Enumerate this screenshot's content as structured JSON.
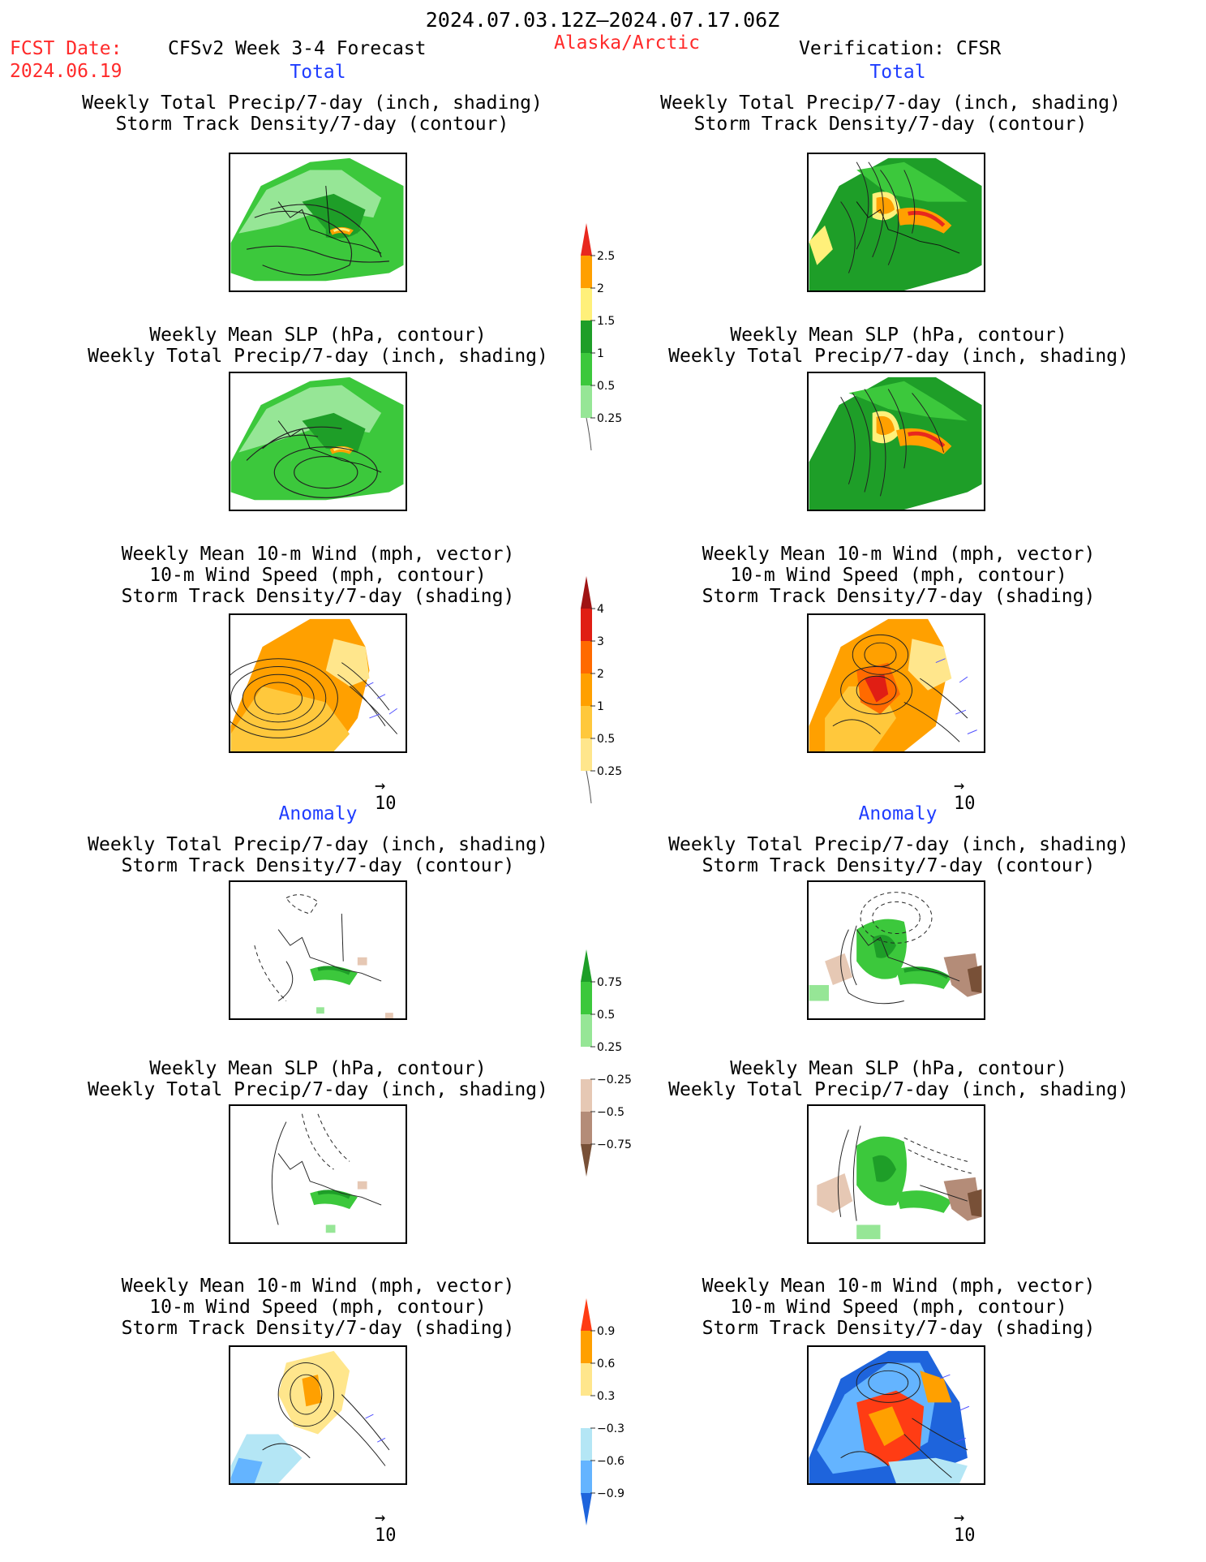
{
  "header": {
    "date_range": "2024.07.03.12Z–2024.07.17.06Z",
    "fcst_label": "FCST Date:",
    "fcst_date": "2024.06.19",
    "forecast_title": "CFSv2 Week 3-4 Forecast",
    "region": "Alaska/Arctic",
    "verification": "Verification: CFSR"
  },
  "sections": {
    "total": "Total",
    "anomaly": "Anomaly"
  },
  "titles": {
    "precip_storm": [
      "Weekly Total Precip/7-day (inch, shading)",
      "Storm Track Density/7-day (contour)"
    ],
    "slp_precip": [
      "Weekly Mean SLP (hPa, contour)",
      "Weekly Total Precip/7-day (inch, shading)"
    ],
    "wind_storm": [
      "Weekly Mean 10-m Wind (mph, vector)",
      "10-m Wind Speed (mph, contour)",
      "Storm Track Density/7-day (shading)"
    ]
  },
  "vector_reference": "10",
  "colorbars": {
    "precip_total": {
      "labels": [
        "2.5",
        "2",
        "1.5",
        "1",
        "0.5",
        "0.25"
      ],
      "colors": [
        "#e8281e",
        "#ffa000",
        "#fff07a",
        "#1e9e28",
        "#3cc83c",
        "#96e696",
        "#c8f5c8"
      ]
    },
    "storm_total": {
      "labels": [
        "4",
        "3",
        "2",
        "1",
        "0.5",
        "0.25"
      ],
      "colors": [
        "#a01414",
        "#e01e14",
        "#ff6a00",
        "#ffa000",
        "#ffc83c",
        "#ffe68c",
        "#fff5c8"
      ]
    },
    "precip_anom": {
      "labels": [
        "0.75",
        "0.5",
        "0.25",
        "−0.25",
        "−0.5",
        "−0.75"
      ],
      "colors": [
        "#1e9e28",
        "#3cc83c",
        "#96e696",
        "#ffffff",
        "#e6c8b4",
        "#b48c78",
        "#785037"
      ]
    },
    "wind_anom": {
      "labels": [
        "0.9",
        "0.6",
        "0.3",
        "−0.3",
        "−0.6",
        "−0.9"
      ],
      "colors": [
        "#ff3c14",
        "#ffa000",
        "#ffe68c",
        "#ffffff",
        "#b4e6f5",
        "#64b4ff",
        "#1e64dc"
      ]
    }
  },
  "colors": {
    "header_red": "#ff2a2a",
    "section_blue": "#1f3dff"
  }
}
